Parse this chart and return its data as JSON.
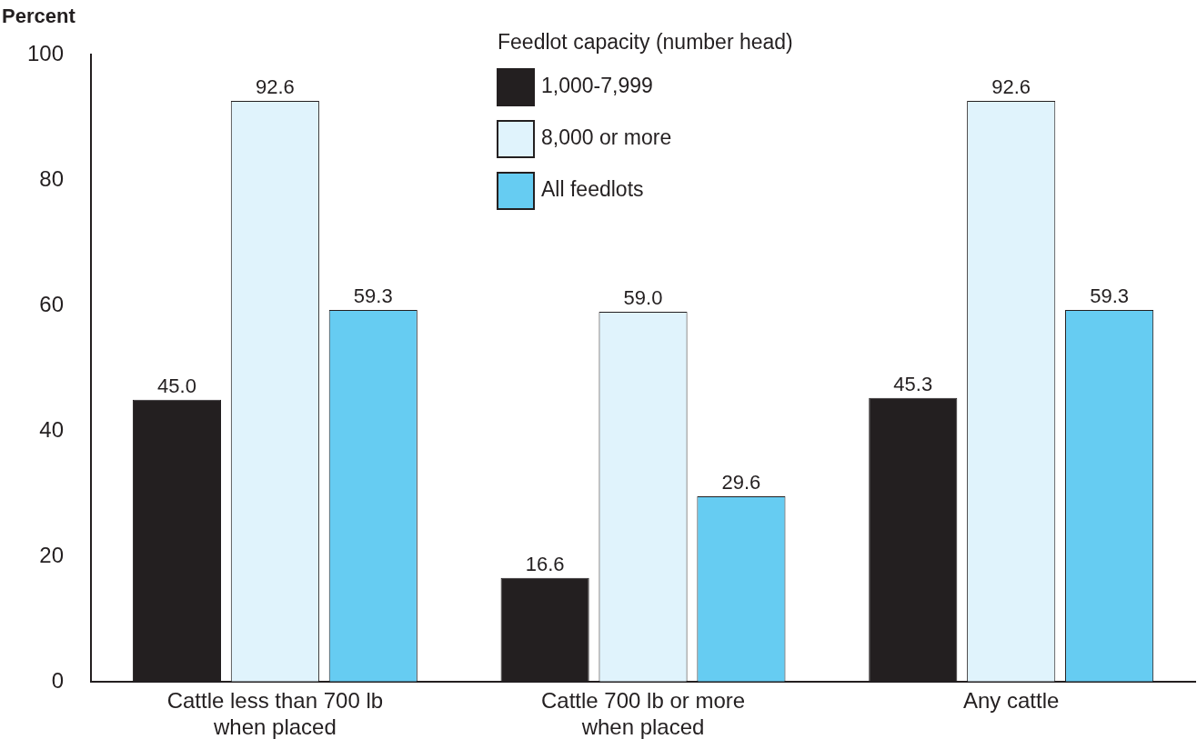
{
  "chart_data": {
    "type": "bar",
    "ylabel": "Percent",
    "legend_title": "Feedlot capacity (number head)",
    "categories": [
      "Cattle less than 700 lb when placed",
      "Cattle 700 lb or more when placed",
      "Any cattle"
    ],
    "series": [
      {
        "name": "1,000-7,999",
        "color": "#231f20",
        "values": [
          45.0,
          16.6,
          45.3
        ],
        "value_labels": [
          "45.0",
          "16.6",
          "45.3"
        ]
      },
      {
        "name": "8,000 or more",
        "color": "#e0f3fc",
        "values": [
          92.6,
          59.0,
          92.6
        ],
        "value_labels": [
          "92.6",
          "59.0",
          "92.6"
        ]
      },
      {
        "name": "All feedlots",
        "color": "#66ccf2",
        "values": [
          59.3,
          29.6,
          59.3
        ],
        "value_labels": [
          "59.3",
          "29.6",
          "59.3"
        ]
      }
    ],
    "ylim": [
      0,
      100
    ],
    "yticks": [
      0,
      20,
      40,
      60,
      80,
      100
    ],
    "grid": false,
    "legend": "top"
  }
}
